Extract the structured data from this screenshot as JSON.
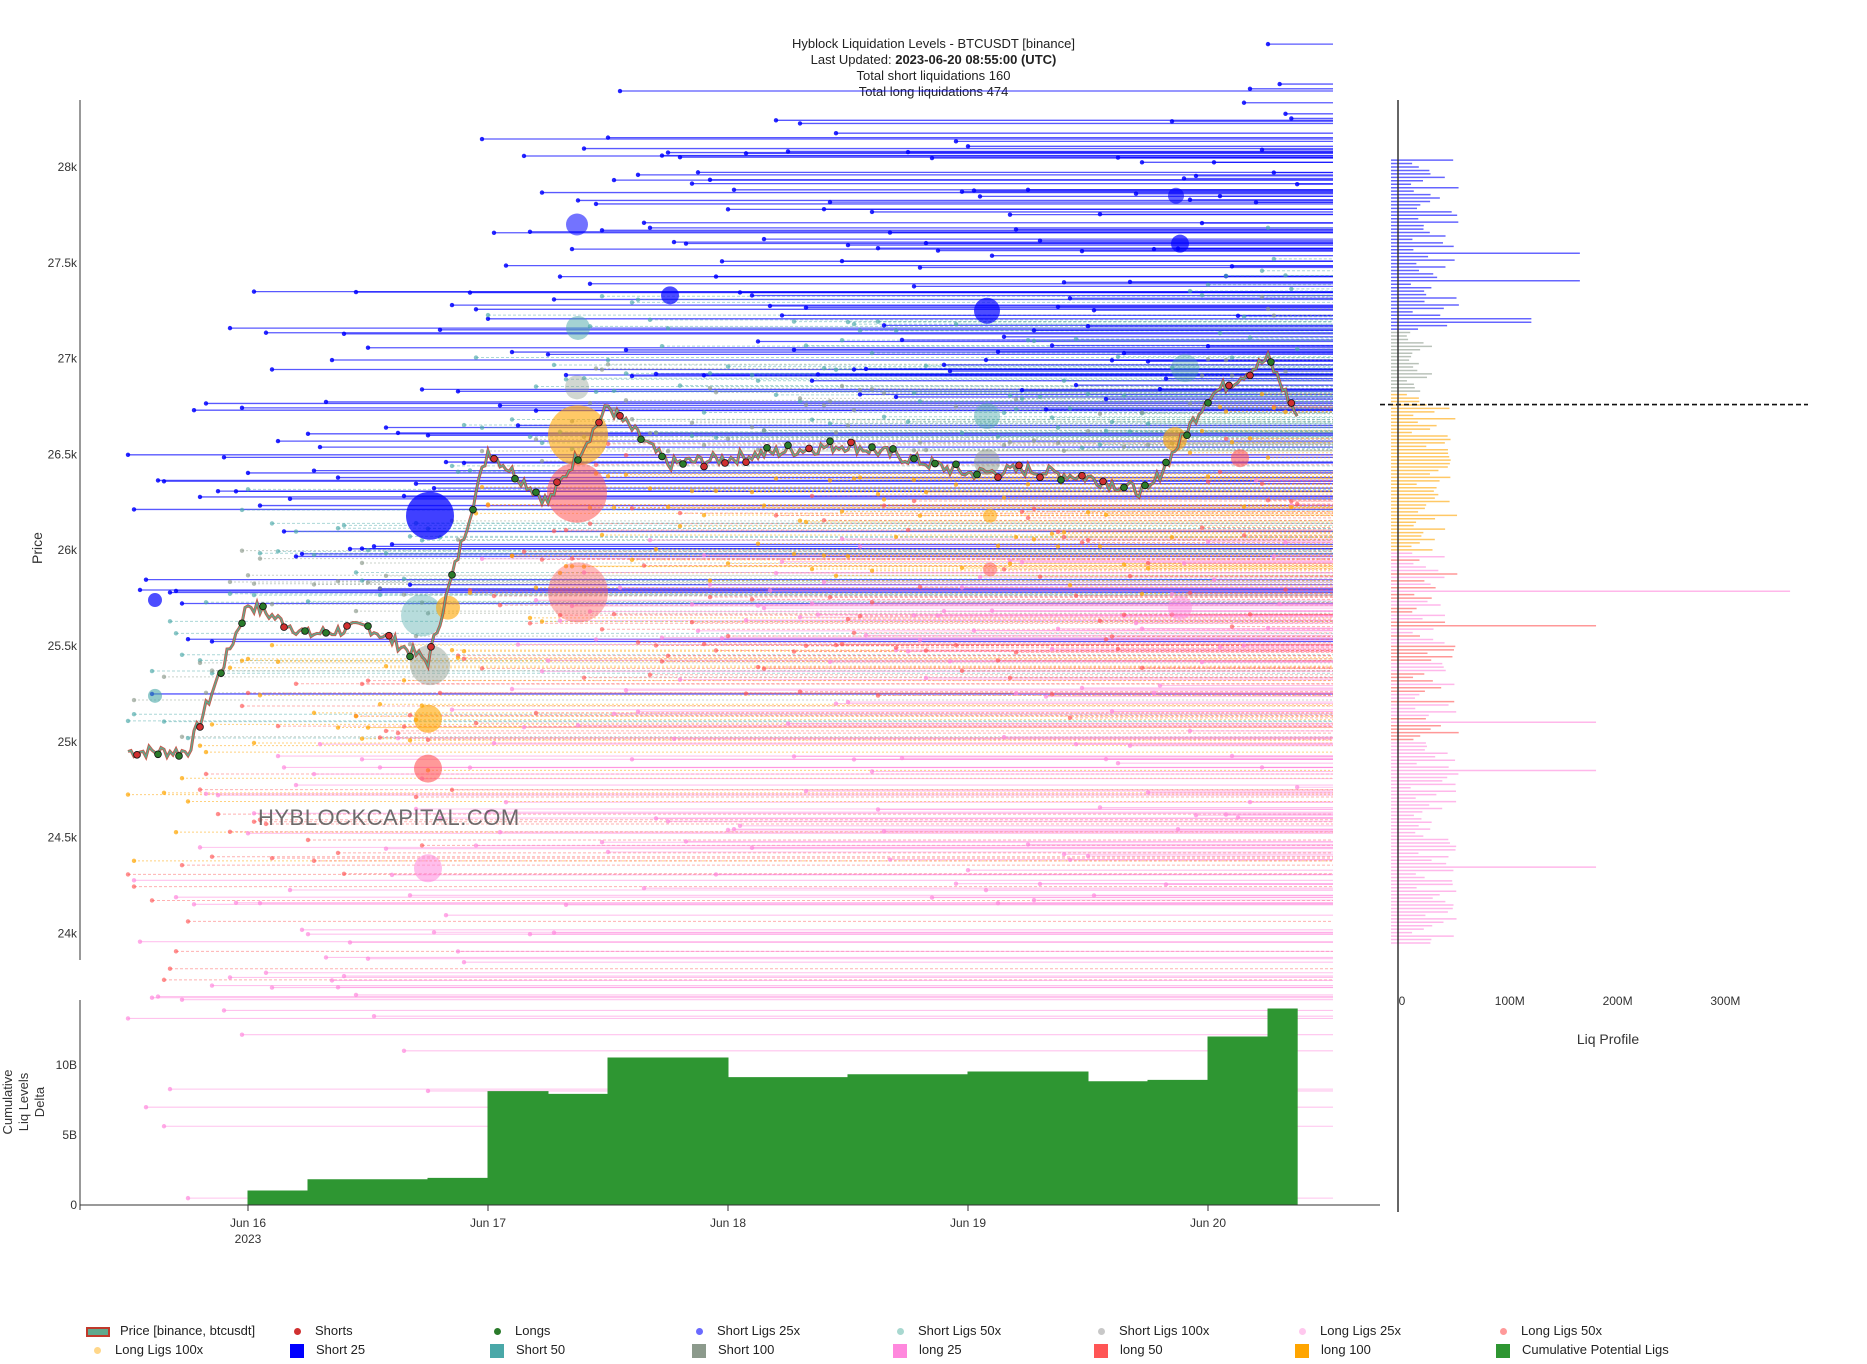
{
  "header": {
    "title": "Hyblock Liquidation Levels - BTCUSDT [binance]",
    "updated_label": "Last Updated:",
    "updated_value": "2023-06-20 08:55:00 (UTC)",
    "short_liqs": "Total short liquidations 160",
    "long_liqs": "Total long liquidations 474"
  },
  "watermark": "HYBLOCKCAPITAL.COM",
  "axes": {
    "price_label": "Price",
    "delta_label_lines": [
      "Cumulative",
      "Liq Levels",
      "Delta"
    ],
    "profile_label": "Liq Profile",
    "price_ticks": [
      "24k",
      "24.5k",
      "25k",
      "25.5k",
      "26k",
      "26.5k",
      "27k",
      "27.5k",
      "28k"
    ],
    "delta_ticks": [
      "0",
      "5B",
      "10B"
    ],
    "profile_ticks": [
      "0",
      "100M",
      "200M",
      "300M"
    ],
    "date_ticks": [
      "Jun 16",
      "Jun 17",
      "Jun 18",
      "Jun 19",
      "Jun 20"
    ],
    "year_label": "2023"
  },
  "colors": {
    "price_up": "#5fa98e",
    "price_down": "#c0392b",
    "short25": "#0000ff",
    "short50": "#4aa8a8",
    "short100": "#8c9a8c",
    "long25": "#ff88dd",
    "long50": "#ff5555",
    "long100": "#ffa500",
    "cumulative": "#2e9632"
  },
  "legend": [
    {
      "label": "Price [binance, btcusdt]",
      "sym": "price",
      "color": "#5fa98e"
    },
    {
      "label": "Shorts",
      "sym": "dot",
      "color": "#d03030"
    },
    {
      "label": "Longs",
      "sym": "dot",
      "color": "#2a7a2a"
    },
    {
      "label": "Short Ligs 25x",
      "sym": "dot",
      "color": "#6a6aff"
    },
    {
      "label": "Short Ligs 50x",
      "sym": "dot",
      "color": "#a8d8d0"
    },
    {
      "label": "Short Ligs 100x",
      "sym": "dot",
      "color": "#c8c8c8"
    },
    {
      "label": "Long Ligs 25x",
      "sym": "dot",
      "color": "#ffc8ee"
    },
    {
      "label": "Long Ligs 50x",
      "sym": "dot",
      "color": "#ff9a9a"
    },
    {
      "label": "Long Ligs 100x",
      "sym": "dot",
      "color": "#ffd78a"
    },
    {
      "label": "Short 25",
      "sym": "sq",
      "color": "#0000ff"
    },
    {
      "label": "Short 50",
      "sym": "sq",
      "color": "#4aa8a8"
    },
    {
      "label": "Short 100",
      "sym": "sq",
      "color": "#8c9a8c"
    },
    {
      "label": "long 25",
      "sym": "sq",
      "color": "#ff88dd"
    },
    {
      "label": "long 50",
      "sym": "sq",
      "color": "#ff5555"
    },
    {
      "label": "long 100",
      "sym": "sq",
      "color": "#ffa500"
    },
    {
      "label": "Cumulative Potential Ligs",
      "sym": "sq",
      "color": "#2e9632"
    }
  ],
  "chart_data": [
    {
      "type": "line",
      "name": "Price [binance, btcusdt]",
      "ylim": [
        23800,
        28400
      ],
      "x": [
        "2023-06-15 12:00",
        "2023-06-15 18:00",
        "2023-06-16 00:00",
        "2023-06-16 06:00",
        "2023-06-16 12:00",
        "2023-06-16 18:00",
        "2023-06-17 00:00",
        "2023-06-17 06:00",
        "2023-06-17 12:00",
        "2023-06-17 18:00",
        "2023-06-18 00:00",
        "2023-06-18 06:00",
        "2023-06-18 12:00",
        "2023-06-18 18:00",
        "2023-06-19 00:00",
        "2023-06-19 06:00",
        "2023-06-19 12:00",
        "2023-06-19 18:00",
        "2023-06-20 00:00",
        "2023-06-20 06:00",
        "2023-06-20 08:55"
      ],
      "y": [
        24950,
        24950,
        25720,
        25560,
        25600,
        25420,
        26520,
        26250,
        26750,
        26450,
        26480,
        26520,
        26550,
        26480,
        26400,
        26420,
        26380,
        26300,
        26800,
        27000,
        26700
      ]
    },
    {
      "type": "area",
      "name": "Cumulative Potential Ligs",
      "x": [
        "2023-06-15 12:00",
        "2023-06-16 00:00",
        "2023-06-16 06:00",
        "2023-06-16 18:00",
        "2023-06-17 00:00",
        "2023-06-17 06:00",
        "2023-06-17 12:00",
        "2023-06-18 00:00",
        "2023-06-18 12:00",
        "2023-06-19 00:00",
        "2023-06-19 12:00",
        "2023-06-19 18:00",
        "2023-06-20 00:00",
        "2023-06-20 06:00",
        "2023-06-20 08:55"
      ],
      "y": [
        0.0,
        1.0,
        1.8,
        1.9,
        8.1,
        7.9,
        10.5,
        9.1,
        9.3,
        9.5,
        8.8,
        8.9,
        12.0,
        14.0,
        13.4
      ],
      "unit": "B"
    },
    {
      "type": "bar",
      "name": "Liq Profile",
      "orientation": "horizontal",
      "unit": "M",
      "xlim": [
        0,
        380
      ],
      "peaks": [
        {
          "price": 27550,
          "value": 165,
          "series": "Short 25"
        },
        {
          "price": 27400,
          "value": 165,
          "series": "Short 25"
        },
        {
          "price": 27200,
          "value": 120,
          "series": "Short 25"
        },
        {
          "price": 25780,
          "value": 360,
          "series": "long 25"
        },
        {
          "price": 25600,
          "value": 180,
          "series": "long 100"
        },
        {
          "price": 25100,
          "value": 180,
          "series": "long 100"
        },
        {
          "price": 24850,
          "value": 180,
          "series": "long 50"
        },
        {
          "price": 24350,
          "value": 180,
          "series": "long 25"
        }
      ]
    }
  ]
}
